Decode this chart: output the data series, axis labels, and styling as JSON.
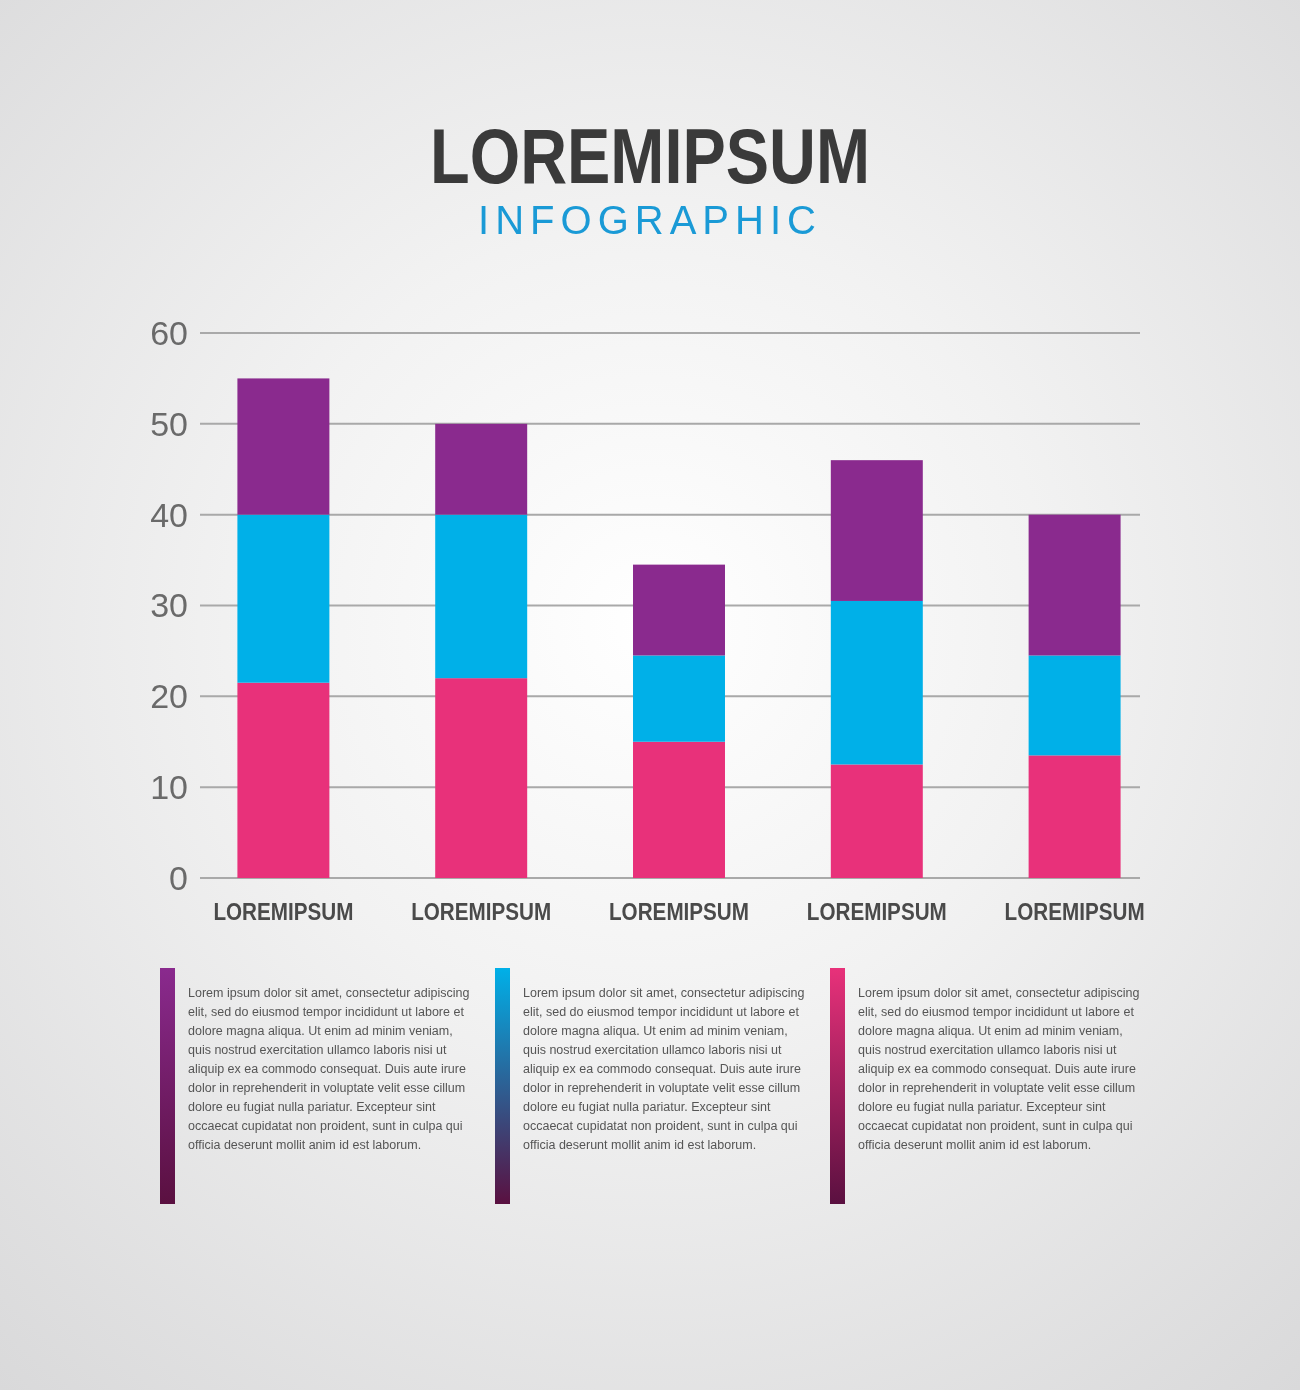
{
  "chart_data": {
    "type": "bar",
    "title": "LOREMIPSUM",
    "subtitle": "INFOGRAPHIC",
    "categories": [
      "LOREMIPSUM",
      "LOREMIPSUM",
      "LOREMIPSUM",
      "LOREMIPSUM",
      "LOREMIPSUM"
    ],
    "stacked": true,
    "series": [
      {
        "color": "#e8317a",
        "values": [
          21.5,
          22,
          15,
          12.5,
          13.5
        ]
      },
      {
        "color": "#00b0e8",
        "values": [
          18.5,
          18,
          9.5,
          18,
          11
        ]
      },
      {
        "color": "#8a2a8e",
        "values": [
          15,
          10,
          10,
          15.5,
          15.5
        ]
      }
    ],
    "ylim": [
      0,
      60
    ],
    "yticks": [
      0,
      10,
      20,
      30,
      40,
      50,
      60
    ],
    "grid": "y",
    "annotations": [
      "Lorem ipsum dolor sit amet, consectetur adipiscing elit, sed do eiusmod tempor incididunt ut labore et dolore magna aliqua. Ut enim ad minim veniam, quis nostrud exercitation ullamco laboris nisi ut aliquip ex ea commodo consequat. Duis aute irure dolor in reprehenderit in voluptate velit esse cillum dolore eu fugiat nulla pariatur. Excepteur sint occaecat cupidatat non proident, sunt in culpa qui officia deserunt mollit anim id est laborum.",
      "Lorem ipsum dolor sit amet, consectetur adipiscing elit, sed do eiusmod tempor incididunt ut labore et dolore magna aliqua. Ut enim ad minim veniam, quis nostrud exercitation ullamco laboris nisi ut aliquip ex ea commodo consequat. Duis aute irure dolor in reprehenderit in voluptate velit esse cillum dolore eu fugiat nulla pariatur. Excepteur sint occaecat cupidatat non proident, sunt in culpa qui officia deserunt mollit anim id est laborum.",
      "Lorem ipsum dolor sit amet, consectetur adipiscing elit, sed do eiusmod tempor incididunt ut labore et dolore magna aliqua. Ut enim ad minim veniam, quis nostrud exercitation ullamco laboris nisi ut aliquip ex ea commodo consequat. Duis aute irure dolor in reprehenderit in voluptate velit esse cillum dolore eu fugiat nulla pariatur. Excepteur sint occaecat cupidatat non proident, sunt in culpa qui officia deserunt mollit anim id est laborum."
    ]
  }
}
